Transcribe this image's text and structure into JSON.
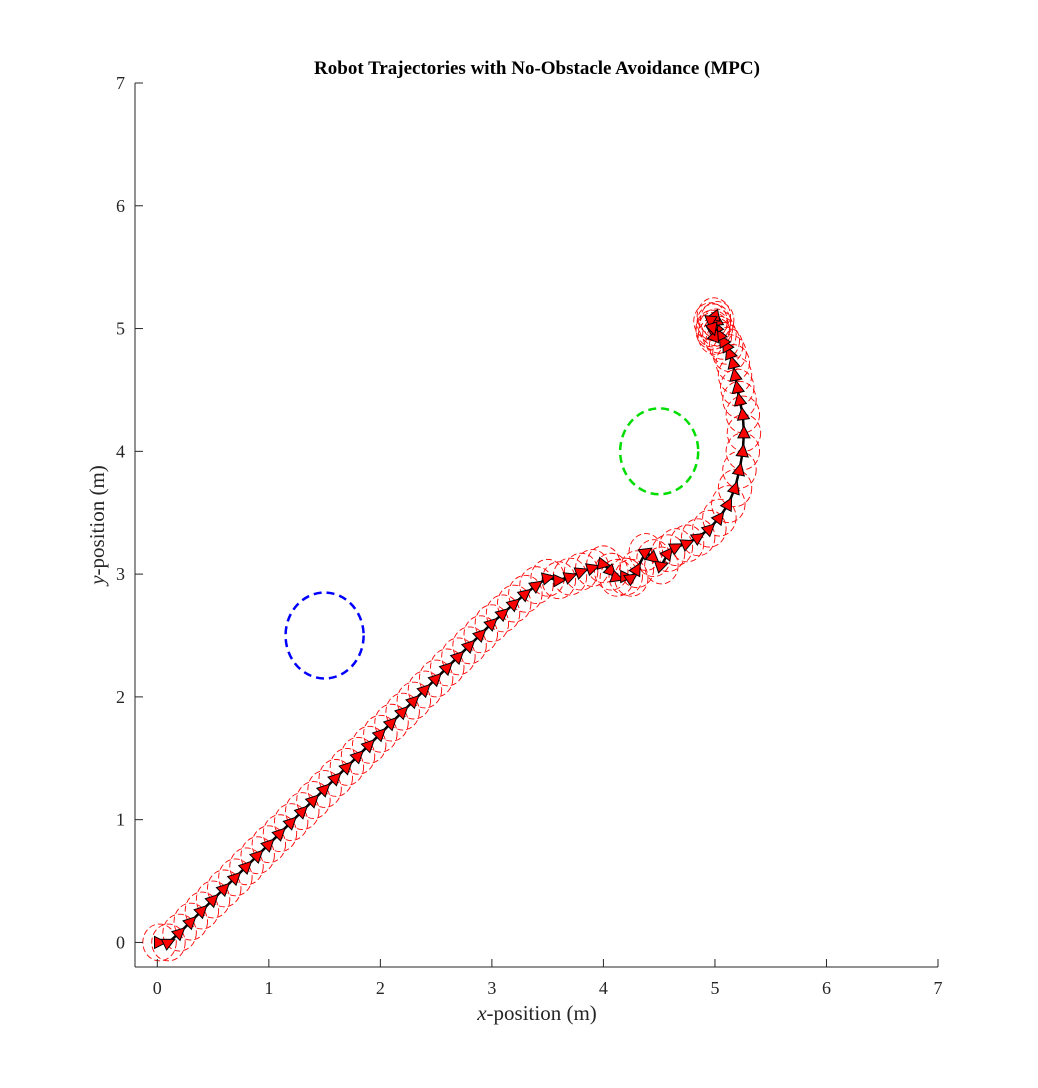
{
  "chart_data": {
    "type": "line",
    "title": "Robot Trajectories with No-Obstacle Avoidance (MPC)",
    "xlabel_var": "x",
    "xlabel_rest": "-position (m)",
    "ylabel_var": "y",
    "ylabel_rest": "-position (m)",
    "xlim": [
      -0.2,
      7
    ],
    "ylim": [
      -0.2,
      7
    ],
    "xticks": [
      0,
      1,
      2,
      3,
      4,
      5,
      6,
      7
    ],
    "yticks": [
      0,
      1,
      2,
      3,
      4,
      5,
      6,
      7
    ],
    "grid": false,
    "obstacles": [
      {
        "center": [
          1.5,
          2.5
        ],
        "radius": 0.35,
        "color": "#0000ff",
        "style": "dashed"
      },
      {
        "center": [
          4.5,
          4.0
        ],
        "radius": 0.35,
        "color": "#00dd00",
        "style": "dashed"
      }
    ],
    "robot_radius": 0.15,
    "robot_color": "#ff0000",
    "path_color": "#000000",
    "trajectory": {
      "x": [
        0.02,
        0.1,
        0.2,
        0.3,
        0.4,
        0.5,
        0.6,
        0.7,
        0.8,
        0.9,
        1.0,
        1.1,
        1.2,
        1.3,
        1.4,
        1.5,
        1.6,
        1.7,
        1.8,
        1.9,
        2.0,
        2.1,
        2.2,
        2.3,
        2.4,
        2.5,
        2.6,
        2.7,
        2.8,
        2.9,
        3.0,
        3.1,
        3.2,
        3.3,
        3.4,
        3.5,
        3.6,
        3.7,
        3.8,
        3.9,
        4.0,
        4.07,
        4.12,
        4.2,
        4.25,
        4.3,
        4.38,
        4.45,
        4.52,
        4.58,
        4.65,
        4.75,
        4.85,
        4.95,
        5.04,
        5.12,
        5.18,
        5.22,
        5.25,
        5.26,
        5.25,
        5.22,
        5.2,
        5.18,
        5.16,
        5.13,
        5.1,
        5.07,
        5.04,
        5.01,
        4.99,
        4.98,
        5.0,
        5.02,
        4.99,
        4.96,
        4.98
      ],
      "y": [
        0.0,
        0.0,
        0.08,
        0.17,
        0.26,
        0.35,
        0.44,
        0.53,
        0.62,
        0.71,
        0.8,
        0.89,
        0.98,
        1.07,
        1.16,
        1.25,
        1.34,
        1.43,
        1.52,
        1.61,
        1.7,
        1.79,
        1.88,
        1.97,
        2.06,
        2.15,
        2.24,
        2.33,
        2.42,
        2.51,
        2.6,
        2.68,
        2.76,
        2.84,
        2.91,
        2.97,
        2.95,
        2.98,
        3.02,
        3.05,
        3.08,
        3.02,
        2.97,
        2.98,
        2.97,
        3.04,
        3.18,
        3.13,
        3.07,
        3.17,
        3.22,
        3.25,
        3.3,
        3.37,
        3.46,
        3.57,
        3.7,
        3.85,
        4.0,
        4.15,
        4.3,
        4.42,
        4.52,
        4.62,
        4.72,
        4.8,
        4.86,
        4.9,
        4.95,
        5.01,
        5.05,
        4.98,
        4.94,
        5.07,
        5.1,
        5.06,
        5.0
      ]
    }
  }
}
